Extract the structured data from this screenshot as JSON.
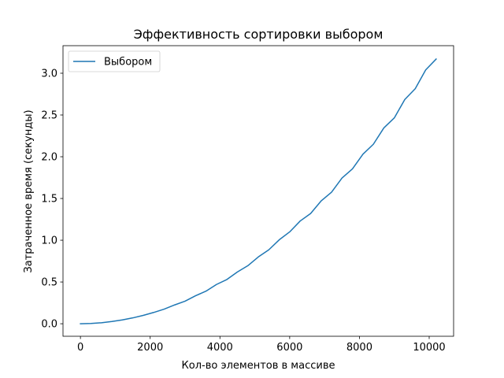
{
  "chart_data": {
    "type": "line",
    "title": "Эффективность сортировки выбором",
    "xlabel": "Кол-во элементов в массиве",
    "ylabel": "Затраченное время (секунды)",
    "xlim": [
      -500,
      10700
    ],
    "ylim": [
      -0.15,
      3.33
    ],
    "xticks": [
      0,
      2000,
      4000,
      6000,
      8000,
      10000
    ],
    "yticks": [
      0.0,
      0.5,
      1.0,
      1.5,
      2.0,
      2.5,
      3.0
    ],
    "xtick_labels": [
      "0",
      "2000",
      "4000",
      "6000",
      "8000",
      "10000"
    ],
    "ytick_labels": [
      "0.0",
      "0.5",
      "1.0",
      "1.5",
      "2.0",
      "2.5",
      "3.0"
    ],
    "legend": "top-left",
    "grid": false,
    "series": [
      {
        "name": "Выбором",
        "color": "#1f77b4",
        "x": [
          0,
          300,
          600,
          900,
          1200,
          1500,
          1800,
          2100,
          2400,
          2700,
          3000,
          3300,
          3600,
          3900,
          4200,
          4500,
          4800,
          5100,
          5400,
          5700,
          6000,
          6300,
          6600,
          6900,
          7200,
          7500,
          7800,
          8100,
          8400,
          8700,
          9000,
          9300,
          9600,
          9900,
          10200
        ],
        "y": [
          0.0,
          0.003,
          0.012,
          0.027,
          0.046,
          0.07,
          0.1,
          0.135,
          0.175,
          0.225,
          0.27,
          0.335,
          0.39,
          0.47,
          0.53,
          0.62,
          0.695,
          0.8,
          0.885,
          1.005,
          1.1,
          1.23,
          1.32,
          1.47,
          1.575,
          1.745,
          1.855,
          2.03,
          2.15,
          2.345,
          2.465,
          2.685,
          2.815,
          3.04,
          3.17
        ]
      }
    ]
  }
}
